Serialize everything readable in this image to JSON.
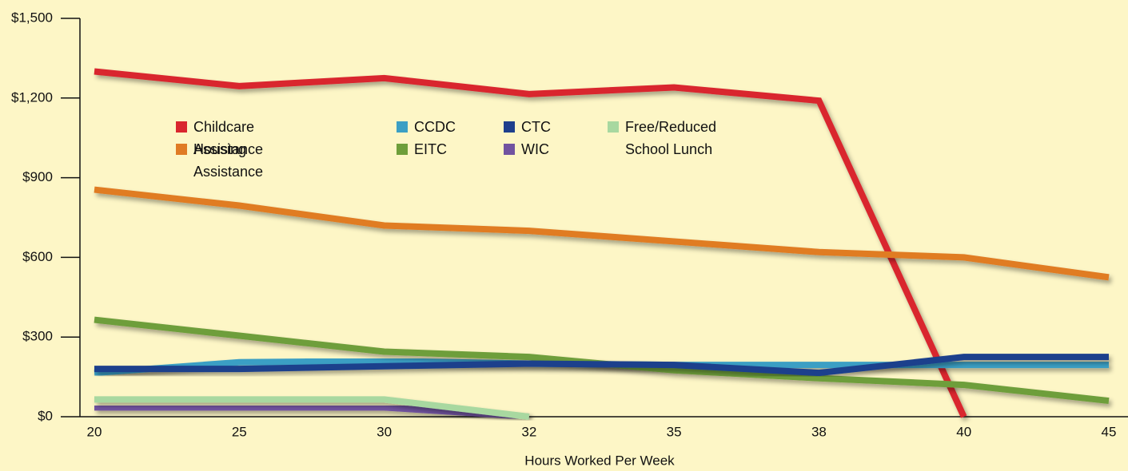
{
  "chart_data": {
    "type": "line",
    "x_label": "Hours Worked Per Week",
    "categories": [
      "20",
      "25",
      "30",
      "32",
      "35",
      "38",
      "40",
      "45"
    ],
    "series": [
      {
        "name": "Childcare Assistance",
        "color": "#d9262e",
        "values": [
          1300,
          1245,
          1275,
          1215,
          1240,
          1190,
          0,
          null
        ]
      },
      {
        "name": "Housing Assistance",
        "color": "#e07b24",
        "values": [
          855,
          795,
          720,
          700,
          660,
          620,
          600,
          525
        ]
      },
      {
        "name": "CCDC",
        "color": "#3b9fc4",
        "values": [
          165,
          205,
          210,
          200,
          195,
          195,
          195,
          195
        ]
      },
      {
        "name": "EITC",
        "color": "#6e9e3a",
        "values": [
          365,
          305,
          245,
          225,
          175,
          145,
          120,
          60
        ]
      },
      {
        "name": "CTC",
        "color": "#1e3f8c",
        "values": [
          180,
          180,
          190,
          200,
          195,
          165,
          225,
          225
        ]
      },
      {
        "name": "WIC",
        "color": "#7153a0",
        "values": [
          35,
          35,
          35,
          0,
          null,
          null,
          null,
          null
        ]
      },
      {
        "name": "Free/Reduced School Lunch",
        "color": "#a8d8a0",
        "values": [
          65,
          65,
          65,
          0,
          null,
          null,
          null,
          null
        ]
      }
    ],
    "ylim": [
      0,
      1500
    ],
    "yticks": [
      {
        "value": 0,
        "label": "$0"
      },
      {
        "value": 300,
        "label": "$300"
      },
      {
        "value": 600,
        "label": "$600"
      },
      {
        "value": 900,
        "label": "$900"
      },
      {
        "value": 1200,
        "label": "$1,200"
      },
      {
        "value": 1500,
        "label": "$1,500"
      }
    ]
  }
}
